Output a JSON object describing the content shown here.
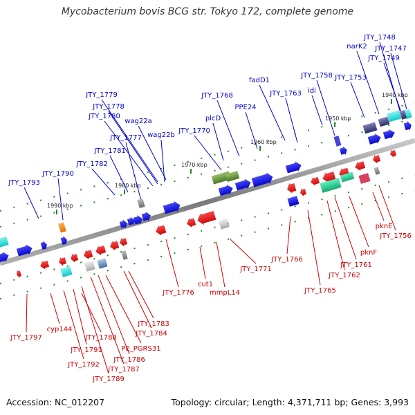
{
  "title": "Mycobacterium bovis BCG str. Tokyo 172, complete genome",
  "accession": "Accession: NC_012207",
  "topology": "Topology: circular; Length: 4,371,711 bp; Genes: 3,993",
  "colors": {
    "forward_gene": "#0000ee",
    "reverse_gene": "#ee0000",
    "forward_label": "#0000cc",
    "reverse_label": "#cc0000",
    "backbone": "#888888",
    "tick_marker": "#228822"
  },
  "ruler": [
    "1940 kbp",
    "1950 kbp",
    "1960 kbp",
    "1970 kbp",
    "1980 kbp",
    "1990 kbp"
  ],
  "forward_labels": [
    "JTY_1748",
    "narK2",
    "JTY_1747",
    "JTY_1749",
    "JTY_1758",
    "JTY_1753",
    "fadD1",
    "idi",
    "JTY_1763",
    "JTY_1768",
    "PPE24",
    "plcD",
    "JTY_1779",
    "JTY_1778",
    "JTY_1780",
    "wag22a",
    "JTY_1770",
    "wag22b",
    "JTY_1777",
    "JTY_1781",
    "JTY_1782",
    "JTY_1790",
    "JTY_1793"
  ],
  "reverse_labels": [
    "pknE",
    "JTY_1756",
    "pknF",
    "JTY_1766",
    "JTY_1761",
    "JTY_1771",
    "JTY_1762",
    "JTY_1765",
    "JTY_1776",
    "cut1",
    "mmpL14",
    "JTY_1783",
    "JTY_1784",
    "JTY_1797",
    "cyp144",
    "JTY_1788",
    "JTY_1791",
    "PE_PGRS31",
    "JTY_1792",
    "JTY_1786",
    "JTY_1787",
    "JTY_1789"
  ]
}
